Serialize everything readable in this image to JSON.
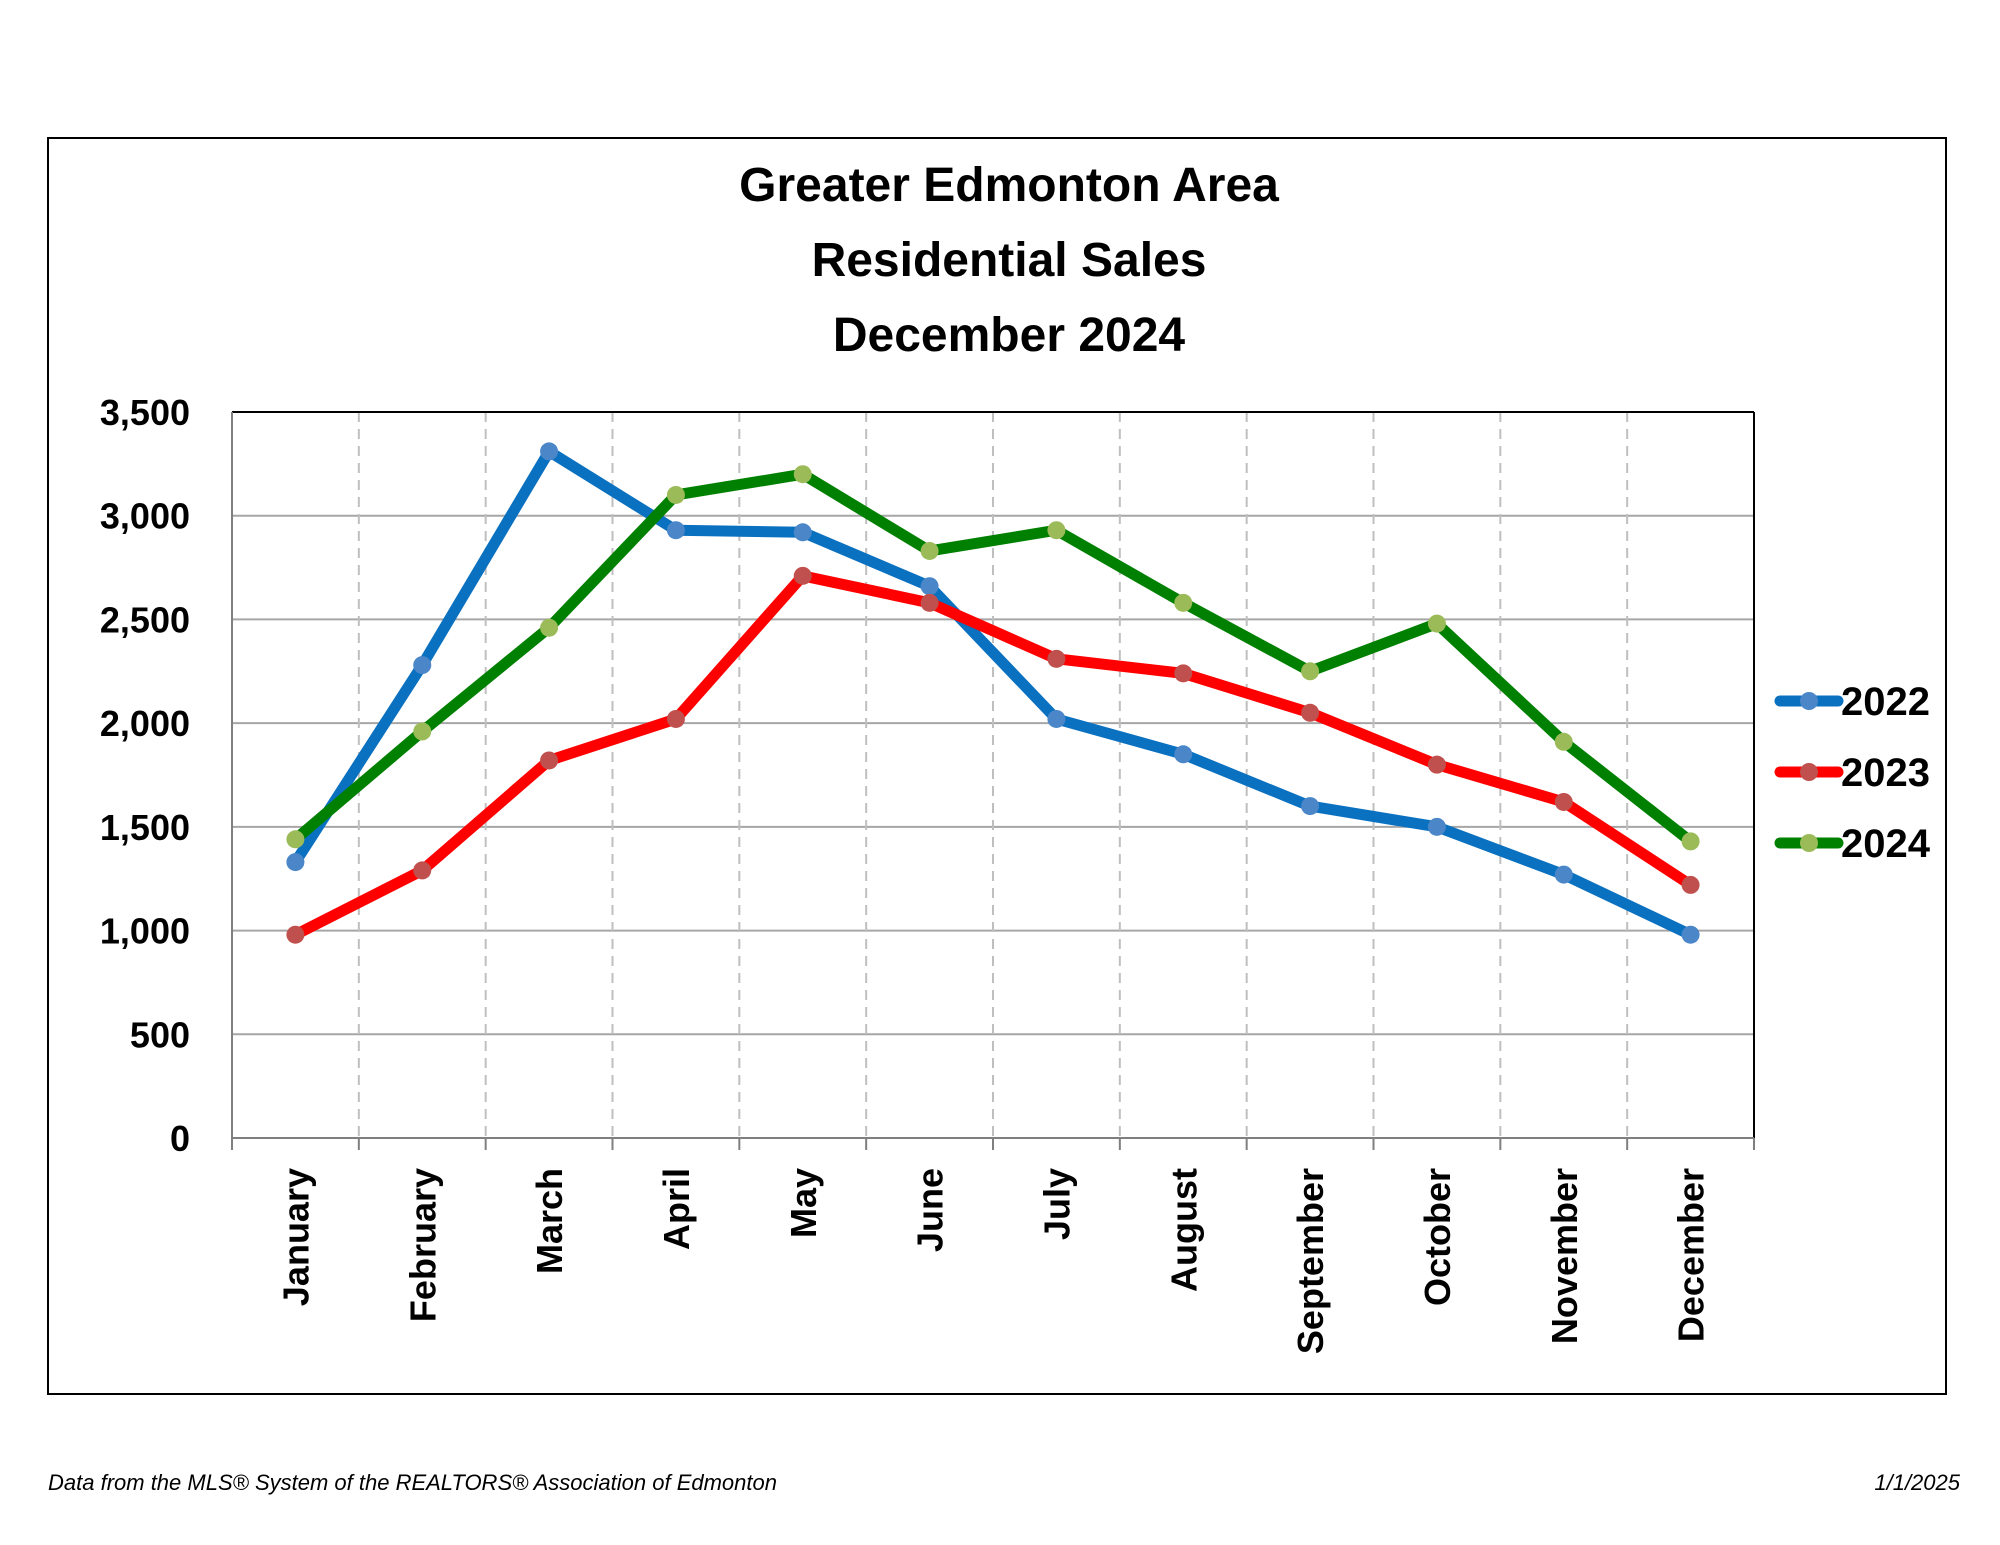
{
  "chart_data": {
    "type": "line",
    "title": [
      "Greater Edmonton Area",
      "Residential Sales",
      "December 2024"
    ],
    "categories": [
      "January",
      "February",
      "March",
      "April",
      "May",
      "June",
      "July",
      "August",
      "September",
      "October",
      "November",
      "December"
    ],
    "ylim": [
      0,
      3500
    ],
    "yticks": [
      0,
      500,
      1000,
      1500,
      2000,
      2500,
      3000,
      3500
    ],
    "ytick_labels": [
      "0",
      "500",
      "1,000",
      "1,500",
      "2,000",
      "2,500",
      "3,000",
      "3,500"
    ],
    "grid": "horizontal solid, vertical dashed",
    "legend_position": "right",
    "series": [
      {
        "name": "2022",
        "color": "#0a70c0",
        "marker_color": "#4a86c8",
        "values": [
          1330,
          2280,
          3310,
          2930,
          2920,
          2660,
          2020,
          1850,
          1600,
          1500,
          1270,
          980
        ]
      },
      {
        "name": "2023",
        "color": "#ff0000",
        "marker_color": "#c0504d",
        "values": [
          980,
          1290,
          1820,
          2020,
          2710,
          2580,
          2310,
          2240,
          2050,
          1800,
          1620,
          1220
        ]
      },
      {
        "name": "2024",
        "color": "#008000",
        "marker_color": "#9bbb59",
        "values": [
          1440,
          1960,
          2460,
          3100,
          3200,
          2830,
          2930,
          2580,
          2250,
          2480,
          1910,
          1430
        ]
      }
    ]
  },
  "footer": {
    "source": "Data from the MLS® System of the REALTORS® Association of Edmonton",
    "date": "1/1/2025"
  }
}
